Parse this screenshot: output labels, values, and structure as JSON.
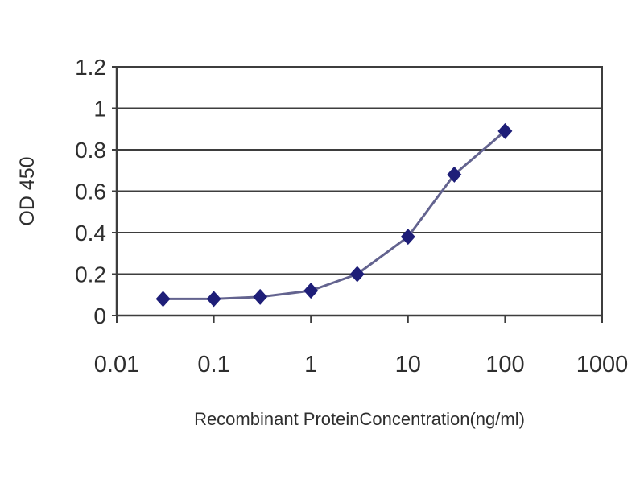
{
  "figure": {
    "background_color": "#ffffff"
  },
  "chart_data": {
    "type": "line",
    "title": "",
    "xlabel": "Recombinant ProteinConcentration(ng/ml)",
    "ylabel": "OD 450",
    "x_scale": "log",
    "y_scale": "linear",
    "xlim": [
      0.01,
      1000
    ],
    "ylim": [
      0,
      1.2
    ],
    "x_tick_values": [
      0.01,
      0.1,
      1,
      10,
      100,
      1000
    ],
    "x_tick_labels": [
      "0.01",
      "0.1",
      "1",
      "10",
      "100",
      "1000"
    ],
    "y_tick_values": [
      0,
      0.2,
      0.4,
      0.6,
      0.8,
      1,
      1.2
    ],
    "y_tick_labels": [
      "0",
      "0.2",
      "0.4",
      "0.6",
      "0.8",
      "1",
      "1.2"
    ],
    "grid": "horizontal",
    "legend": "none",
    "series": [
      {
        "name": "OD 450",
        "marker": "diamond",
        "x": [
          0.03,
          0.1,
          0.3,
          1,
          3,
          10,
          30,
          100
        ],
        "y": [
          0.08,
          0.08,
          0.09,
          0.12,
          0.2,
          0.38,
          0.68,
          0.89
        ],
        "line_color": "#63638f",
        "marker_color": "#1e1e78"
      }
    ],
    "colors": {
      "grid": "#3d3d3d",
      "axis": "#3d3d3d",
      "text": "#2e2e2e",
      "plot_background": "#ffffff"
    }
  }
}
